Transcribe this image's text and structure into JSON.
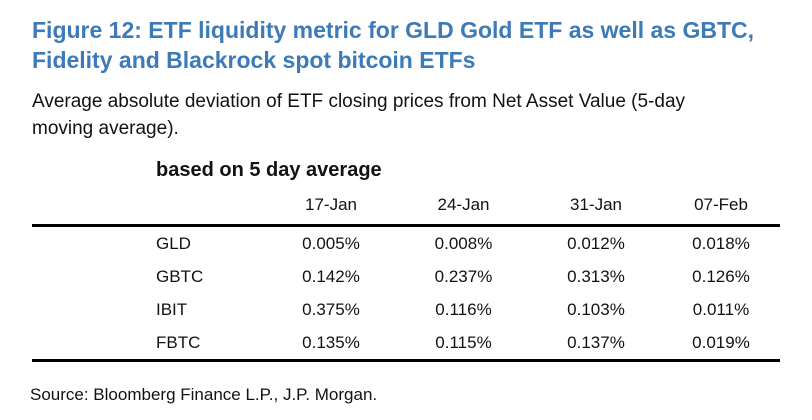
{
  "title": {
    "line1": "Figure 12: ETF liquidity metric for GLD Gold ETF as well as GBTC,",
    "line2": "Fidelity and Blackrock spot bitcoin ETFs"
  },
  "subtitle": {
    "line1": "Average absolute deviation of ETF closing prices from Net Asset Value (5-day",
    "line2": "moving average)."
  },
  "source": "Source: Bloomberg Finance L.P., J.P. Morgan.",
  "colors": {
    "title_blue": "#3d7ab8",
    "text": "#121212",
    "rule": "#000000"
  },
  "chart_data": {
    "type": "table",
    "caption": "based on 5 day average",
    "columns": [
      "17-Jan",
      "24-Jan",
      "31-Jan",
      "07-Feb"
    ],
    "rows": [
      {
        "label": "GLD",
        "values": [
          "0.005%",
          "0.008%",
          "0.012%",
          "0.018%"
        ]
      },
      {
        "label": "GBTC",
        "values": [
          "0.142%",
          "0.237%",
          "0.313%",
          "0.126%"
        ]
      },
      {
        "label": "IBIT",
        "values": [
          "0.375%",
          "0.116%",
          "0.103%",
          "0.011%"
        ]
      },
      {
        "label": "FBTC",
        "values": [
          "0.135%",
          "0.115%",
          "0.137%",
          "0.019%"
        ]
      }
    ]
  }
}
